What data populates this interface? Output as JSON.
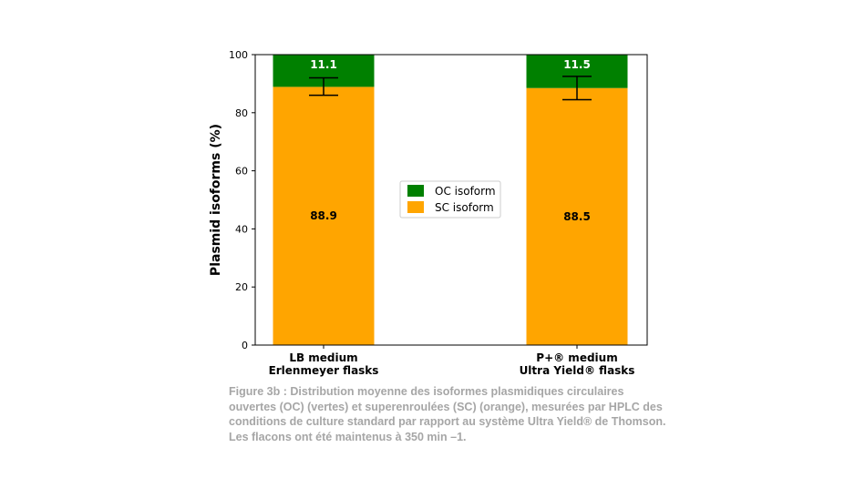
{
  "chart_data": {
    "type": "bar",
    "stacked": true,
    "categories": [
      {
        "line1": "LB medium",
        "line2": "Erlenmeyer flasks"
      },
      {
        "line1": "P+® medium",
        "line2": "Ultra Yield® flasks"
      }
    ],
    "series": [
      {
        "name": "SC isoform",
        "values": [
          88.9,
          88.5
        ],
        "labels": [
          "88.9",
          "88.5"
        ],
        "color": "#ffa500",
        "label_color": "#000000"
      },
      {
        "name": "OC isoform",
        "values": [
          11.1,
          11.5
        ],
        "labels": [
          "11.1",
          "11.5"
        ],
        "color": "#008000",
        "label_color": "#ffffff"
      }
    ],
    "error_bars": [
      {
        "center": 89.0,
        "low": 86.0,
        "high": 92.0
      },
      {
        "center": 88.5,
        "low": 84.5,
        "high": 92.5
      }
    ],
    "ylabel": "Plasmid isoforms (%)",
    "ylim": [
      0,
      100
    ],
    "yticks": [
      "0",
      "20",
      "40",
      "60",
      "80",
      "100"
    ],
    "grid": false,
    "legend_position": "center",
    "legend_order": [
      "OC isoform",
      "SC isoform"
    ]
  },
  "caption": "Figure 3b : Distribution moyenne des isoformes plasmidiques circulaires ouvertes (OC) (vertes) et superenroulées (SC) (orange), mesurées par HPLC des conditions de culture standard par rapport au système Ultra Yield® de Thomson. Les flacons ont été maintenus à 350 min –1."
}
